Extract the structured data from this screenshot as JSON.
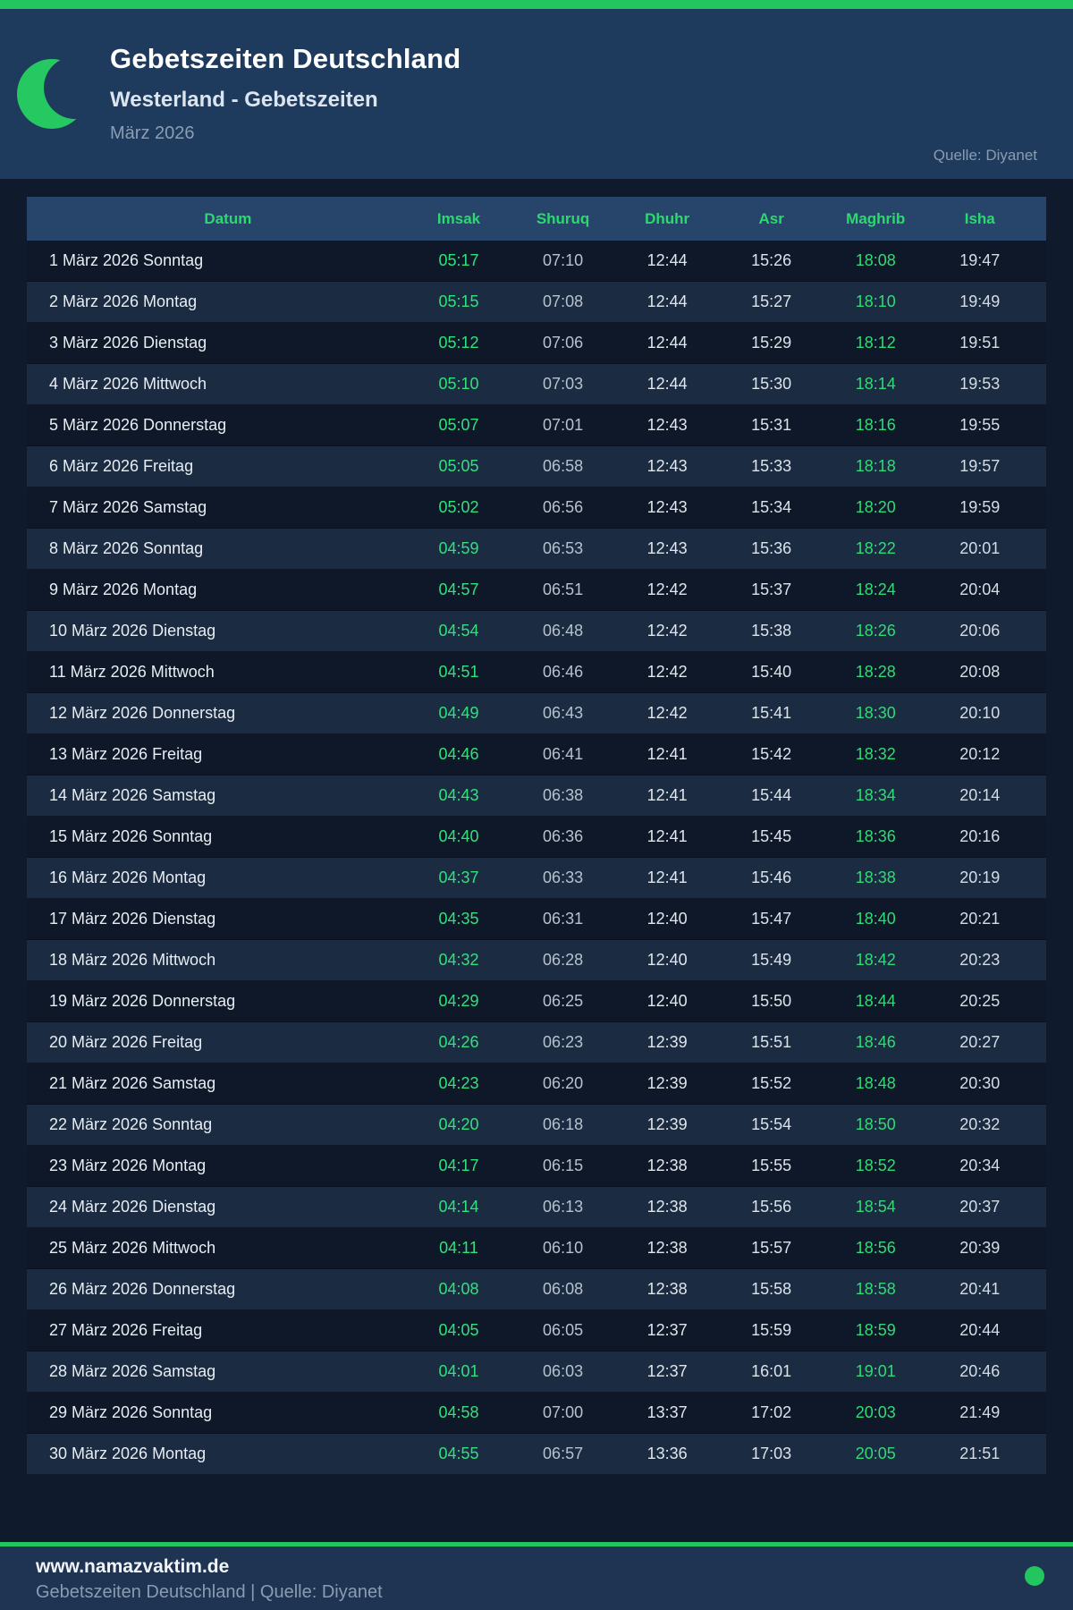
{
  "colors": {
    "accent_green": "#22c55e",
    "header_bg": "#1e3a5c",
    "content_bg": "#0f1a2d",
    "table_header_bg": "#27456a",
    "row_odd": "#0e1829",
    "row_even": "#1a2b42",
    "time_green": "#2edc74"
  },
  "header": {
    "title": "Gebetszeiten Deutschland",
    "subtitle": "Westerland - Gebetszeiten",
    "month": "März 2026",
    "source": "Quelle: Diyanet",
    "icon": "crescent-moon-icon"
  },
  "table": {
    "columns": [
      "Datum",
      "Imsak",
      "Shuruq",
      "Dhuhr",
      "Asr",
      "Maghrib",
      "Isha"
    ],
    "rows": [
      [
        "1 März 2026 Sonntag",
        "05:17",
        "07:10",
        "12:44",
        "15:26",
        "18:08",
        "19:47"
      ],
      [
        "2 März 2026 Montag",
        "05:15",
        "07:08",
        "12:44",
        "15:27",
        "18:10",
        "19:49"
      ],
      [
        "3 März 2026 Dienstag",
        "05:12",
        "07:06",
        "12:44",
        "15:29",
        "18:12",
        "19:51"
      ],
      [
        "4 März 2026 Mittwoch",
        "05:10",
        "07:03",
        "12:44",
        "15:30",
        "18:14",
        "19:53"
      ],
      [
        "5 März 2026 Donnerstag",
        "05:07",
        "07:01",
        "12:43",
        "15:31",
        "18:16",
        "19:55"
      ],
      [
        "6 März 2026 Freitag",
        "05:05",
        "06:58",
        "12:43",
        "15:33",
        "18:18",
        "19:57"
      ],
      [
        "7 März 2026 Samstag",
        "05:02",
        "06:56",
        "12:43",
        "15:34",
        "18:20",
        "19:59"
      ],
      [
        "8 März 2026 Sonntag",
        "04:59",
        "06:53",
        "12:43",
        "15:36",
        "18:22",
        "20:01"
      ],
      [
        "9 März 2026 Montag",
        "04:57",
        "06:51",
        "12:42",
        "15:37",
        "18:24",
        "20:04"
      ],
      [
        "10 März 2026 Dienstag",
        "04:54",
        "06:48",
        "12:42",
        "15:38",
        "18:26",
        "20:06"
      ],
      [
        "11 März 2026 Mittwoch",
        "04:51",
        "06:46",
        "12:42",
        "15:40",
        "18:28",
        "20:08"
      ],
      [
        "12 März 2026 Donnerstag",
        "04:49",
        "06:43",
        "12:42",
        "15:41",
        "18:30",
        "20:10"
      ],
      [
        "13 März 2026 Freitag",
        "04:46",
        "06:41",
        "12:41",
        "15:42",
        "18:32",
        "20:12"
      ],
      [
        "14 März 2026 Samstag",
        "04:43",
        "06:38",
        "12:41",
        "15:44",
        "18:34",
        "20:14"
      ],
      [
        "15 März 2026 Sonntag",
        "04:40",
        "06:36",
        "12:41",
        "15:45",
        "18:36",
        "20:16"
      ],
      [
        "16 März 2026 Montag",
        "04:37",
        "06:33",
        "12:41",
        "15:46",
        "18:38",
        "20:19"
      ],
      [
        "17 März 2026 Dienstag",
        "04:35",
        "06:31",
        "12:40",
        "15:47",
        "18:40",
        "20:21"
      ],
      [
        "18 März 2026 Mittwoch",
        "04:32",
        "06:28",
        "12:40",
        "15:49",
        "18:42",
        "20:23"
      ],
      [
        "19 März 2026 Donnerstag",
        "04:29",
        "06:25",
        "12:40",
        "15:50",
        "18:44",
        "20:25"
      ],
      [
        "20 März 2026 Freitag",
        "04:26",
        "06:23",
        "12:39",
        "15:51",
        "18:46",
        "20:27"
      ],
      [
        "21 März 2026 Samstag",
        "04:23",
        "06:20",
        "12:39",
        "15:52",
        "18:48",
        "20:30"
      ],
      [
        "22 März 2026 Sonntag",
        "04:20",
        "06:18",
        "12:39",
        "15:54",
        "18:50",
        "20:32"
      ],
      [
        "23 März 2026 Montag",
        "04:17",
        "06:15",
        "12:38",
        "15:55",
        "18:52",
        "20:34"
      ],
      [
        "24 März 2026 Dienstag",
        "04:14",
        "06:13",
        "12:38",
        "15:56",
        "18:54",
        "20:37"
      ],
      [
        "25 März 2026 Mittwoch",
        "04:11",
        "06:10",
        "12:38",
        "15:57",
        "18:56",
        "20:39"
      ],
      [
        "26 März 2026 Donnerstag",
        "04:08",
        "06:08",
        "12:38",
        "15:58",
        "18:58",
        "20:41"
      ],
      [
        "27 März 2026 Freitag",
        "04:05",
        "06:05",
        "12:37",
        "15:59",
        "18:59",
        "20:44"
      ],
      [
        "28 März 2026 Samstag",
        "04:01",
        "06:03",
        "12:37",
        "16:01",
        "19:01",
        "20:46"
      ],
      [
        "29 März 2026 Sonntag",
        "04:58",
        "07:00",
        "13:37",
        "17:02",
        "20:03",
        "21:49"
      ],
      [
        "30 März 2026 Montag",
        "04:55",
        "06:57",
        "13:36",
        "17:03",
        "20:05",
        "21:51"
      ]
    ]
  },
  "footer": {
    "website": "www.namazvaktim.de",
    "tagline": "Gebetszeiten Deutschland | Quelle: Diyanet"
  }
}
